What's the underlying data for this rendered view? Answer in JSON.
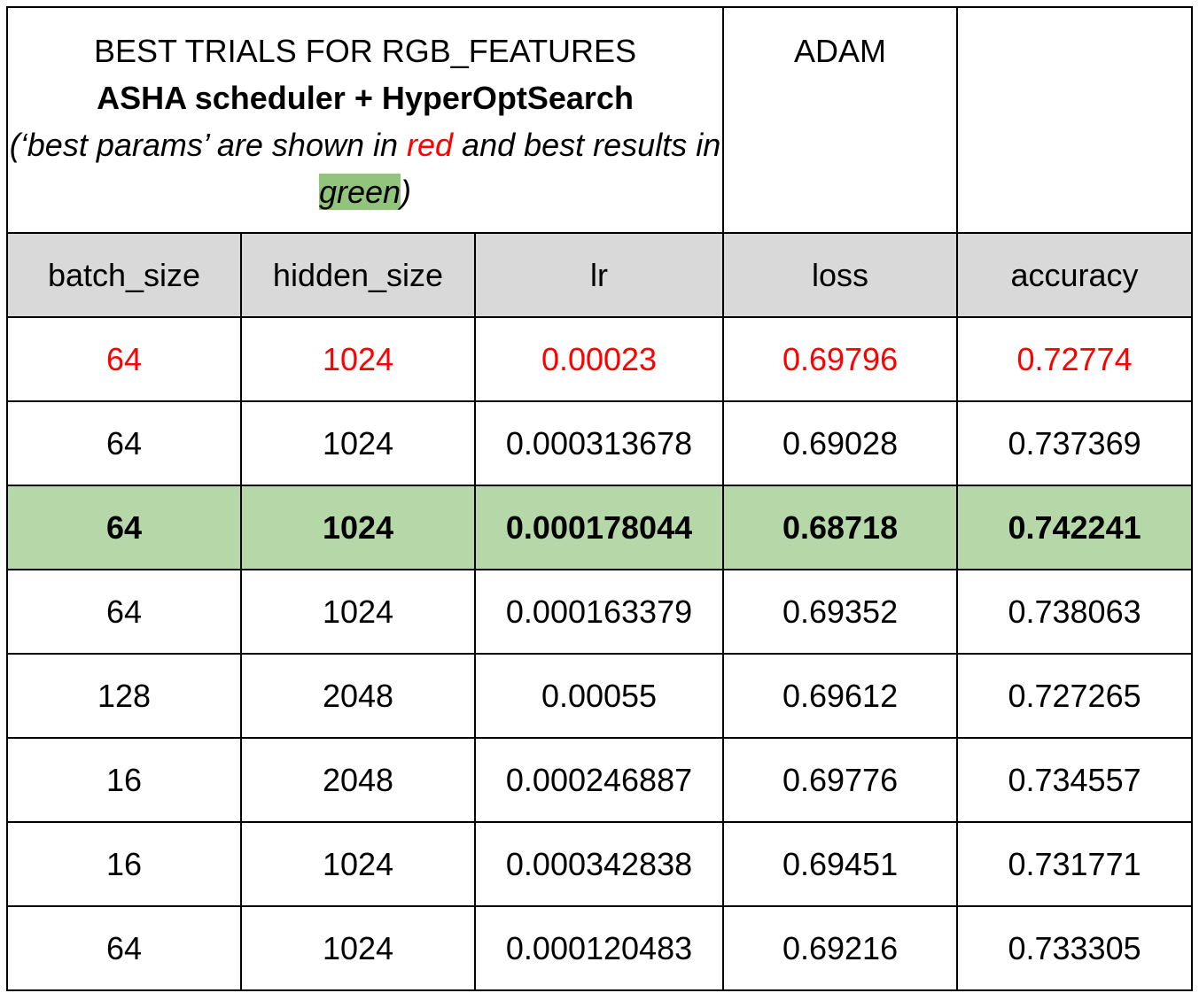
{
  "title": {
    "line1": "BEST TRIALS FOR RGB_FEATURES",
    "line2": "ASHA scheduler + HyperOptSearch",
    "note_prefix": "(‘best params’ are shown in ",
    "note_red": "red",
    "note_middle": " and best results in ",
    "note_green": "green",
    "note_suffix": ")"
  },
  "optimizer": "ADAM",
  "extra_header": "",
  "colors": {
    "best_params_text": "#ff0000",
    "best_result_fill": "#b6d7a8",
    "header_fill": "#d9d9d9",
    "green_highlight": "#93c47d"
  },
  "columns": [
    "batch_size",
    "hidden_size",
    "lr",
    "loss",
    "accuracy"
  ],
  "rows": [
    {
      "batch_size": "64",
      "hidden_size": "1024",
      "lr": "0.00023",
      "loss": "0.69796",
      "accuracy": "0.72774"
    },
    {
      "batch_size": "64",
      "hidden_size": "1024",
      "lr": "0.000313678",
      "loss": "0.69028",
      "accuracy": "0.737369"
    },
    {
      "batch_size": "64",
      "hidden_size": "1024",
      "lr": "0.000178044",
      "loss": "0.68718",
      "accuracy": "0.742241"
    },
    {
      "batch_size": "64",
      "hidden_size": "1024",
      "lr": "0.000163379",
      "loss": "0.69352",
      "accuracy": "0.738063"
    },
    {
      "batch_size": "128",
      "hidden_size": "2048",
      "lr": "0.00055",
      "loss": "0.69612",
      "accuracy": "0.727265"
    },
    {
      "batch_size": "16",
      "hidden_size": "2048",
      "lr": "0.000246887",
      "loss": "0.69776",
      "accuracy": "0.734557"
    },
    {
      "batch_size": "16",
      "hidden_size": "1024",
      "lr": "0.000342838",
      "loss": "0.69451",
      "accuracy": "0.731771"
    },
    {
      "batch_size": "64",
      "hidden_size": "1024",
      "lr": "0.000120483",
      "loss": "0.69216",
      "accuracy": "0.733305"
    }
  ]
}
